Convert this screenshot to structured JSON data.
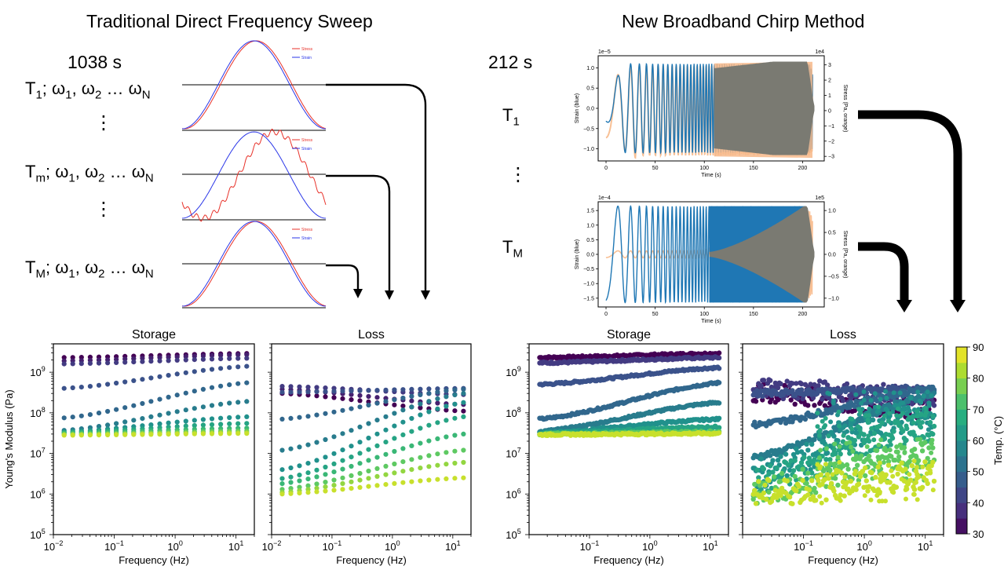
{
  "left": {
    "title": "Traditional Direct Frequency Sweep",
    "duration": "1038 s",
    "temperature_rows": [
      {
        "T": "T",
        "t_sub": "1",
        "w1": "1",
        "w2": "2",
        "wN": "N"
      },
      {
        "T": "T",
        "t_sub": "m",
        "w1": "1",
        "w2": "2",
        "wN": "N"
      },
      {
        "T": "T",
        "t_sub": "M",
        "w1": "1",
        "w2": "2",
        "wN": "N"
      }
    ],
    "omega": "ω",
    "ellipsis": "…",
    "vdots": "⋮",
    "waveform_legend": {
      "stress": "Stress",
      "strain": "Strain"
    }
  },
  "right": {
    "title": "New Broadband Chirp Method",
    "duration": "212 s",
    "labels": [
      {
        "T": "T",
        "t_sub": "1"
      },
      {
        "T": "T",
        "t_sub": "M"
      }
    ],
    "vdots": "⋮"
  },
  "colors": {
    "stress_line": "#e8322a",
    "strain_line": "#2a36e8",
    "chirp_strain": "#1f77b4",
    "chirp_stress": "#f7b98a",
    "overlap": "#7a7a72",
    "arrow": "#000000",
    "viridis": [
      "#440154",
      "#472f7d",
      "#3b528b",
      "#2c728e",
      "#21918c",
      "#28ae80",
      "#5ec962",
      "#addc30",
      "#fde725"
    ]
  },
  "chart_data": [
    {
      "type": "line",
      "panel": "chirp-T1",
      "xlabel": "Time (s)",
      "ylabel_left": "Strain (blue)",
      "ylabel_right": "Stress (Pa, orange)",
      "x_ticks": [
        "0",
        "50",
        "100",
        "150",
        "200"
      ],
      "y_ticks_left": [
        "1.0",
        "0.5",
        "0.0",
        "−0.5",
        "−1.0"
      ],
      "y_ticks_right": [
        "3",
        "2",
        "1",
        "0",
        "−1",
        "−2",
        "−3"
      ],
      "y_exponent_left": "1e−5",
      "y_exponent_right": "1e4",
      "xlim": [
        -8,
        222
      ],
      "ylim_left": [
        -1.3,
        1.3
      ],
      "ylim_right": [
        -3.3,
        3.6
      ],
      "series": [
        {
          "name": "Strain (blue)",
          "color": "#1f77b4",
          "amplitude": 1.1
        },
        {
          "name": "Stress (Pa, orange)",
          "color": "#f7b98a",
          "amplitude": 3.1
        }
      ]
    },
    {
      "type": "line",
      "panel": "chirp-TM",
      "xlabel": "Time (s)",
      "ylabel_left": "Strain (blue)",
      "ylabel_right": "Stress (Pa, orange)",
      "x_ticks": [
        "0",
        "50",
        "100",
        "150",
        "200"
      ],
      "y_ticks_left": [
        "1.5",
        "1.0",
        "0.5",
        "0.0",
        "−0.5",
        "−1.0",
        "−1.5"
      ],
      "y_ticks_right": [
        "1.0",
        "0.5",
        "0.0",
        "−0.5",
        "−1.0"
      ],
      "y_exponent_left": "1e−4",
      "y_exponent_right": "1e5",
      "xlim": [
        -8,
        222
      ],
      "ylim_left": [
        -1.8,
        1.8
      ],
      "ylim_right": [
        -1.2,
        1.2
      ],
      "series": [
        {
          "name": "Strain (blue)",
          "color": "#1f77b4",
          "amplitude": 1.65
        },
        {
          "name": "Stress (Pa, orange)",
          "color": "#f7b98a",
          "amplitude": 1.05
        }
      ]
    },
    {
      "type": "scatter",
      "panel": "traditional-storage",
      "title": "Storage",
      "xlabel": "Frequency (Hz)",
      "ylabel": "Young's Modulus (Pa)",
      "x_scale": "log",
      "y_scale": "log",
      "xlim": [
        0.01,
        20
      ],
      "ylim": [
        100000,
        5000000000
      ],
      "x_ticks": [
        {
          "mant": "10",
          "exp": "−2"
        },
        {
          "mant": "10",
          "exp": "−1"
        },
        {
          "mant": "10",
          "exp": "0"
        },
        {
          "mant": "10",
          "exp": "1"
        }
      ],
      "y_ticks": [
        {
          "mant": "10",
          "exp": "5"
        },
        {
          "mant": "10",
          "exp": "6"
        },
        {
          "mant": "10",
          "exp": "7"
        },
        {
          "mant": "10",
          "exp": "8"
        },
        {
          "mant": "10",
          "exp": "9"
        }
      ],
      "freq_range": [
        0.015,
        15
      ],
      "series": [
        {
          "temp": 30,
          "start": 2300000000,
          "end": 2900000000
        },
        {
          "temp": 35,
          "start": 1900000000,
          "end": 2700000000
        },
        {
          "temp": 40,
          "start": 1600000000,
          "end": 2200000000
        },
        {
          "temp": 45,
          "start": 400000000,
          "end": 1400000000
        },
        {
          "temp": 50,
          "start": 75000000,
          "end": 550000000
        },
        {
          "temp": 55,
          "start": 37000000,
          "end": 190000000
        },
        {
          "temp": 60,
          "start": 34000000,
          "end": 80000000
        },
        {
          "temp": 65,
          "start": 33000000,
          "end": 55000000
        },
        {
          "temp": 70,
          "start": 32000000,
          "end": 42000000
        },
        {
          "temp": 75,
          "start": 30000000,
          "end": 36000000
        },
        {
          "temp": 80,
          "start": 29000000,
          "end": 33000000
        },
        {
          "temp": 85,
          "start": 28000000,
          "end": 31000000
        }
      ]
    },
    {
      "type": "scatter",
      "panel": "traditional-loss",
      "title": "Loss",
      "xlabel": "Frequency (Hz)",
      "x_scale": "log",
      "y_scale": "log",
      "xlim": [
        0.01,
        20
      ],
      "ylim": [
        100000,
        5000000000
      ],
      "x_ticks": [
        {
          "mant": "10",
          "exp": "−2"
        },
        {
          "mant": "10",
          "exp": "−1"
        },
        {
          "mant": "10",
          "exp": "0"
        },
        {
          "mant": "10",
          "exp": "1"
        }
      ],
      "freq_range": [
        0.015,
        15
      ],
      "series": [
        {
          "temp": 30,
          "start": 300000000,
          "end": 110000000
        },
        {
          "temp": 35,
          "start": 380000000,
          "end": 160000000
        },
        {
          "temp": 40,
          "start": 450000000,
          "end": 280000000
        },
        {
          "temp": 45,
          "start": 320000000,
          "end": 400000000
        },
        {
          "temp": 50,
          "start": 70000000,
          "end": 380000000
        },
        {
          "temp": 55,
          "start": 12000000,
          "end": 300000000
        },
        {
          "temp": 60,
          "start": 4000000,
          "end": 180000000
        },
        {
          "temp": 65,
          "start": 2400000,
          "end": 80000000
        },
        {
          "temp": 70,
          "start": 1800000,
          "end": 30000000
        },
        {
          "temp": 75,
          "start": 1300000,
          "end": 12000000
        },
        {
          "temp": 80,
          "start": 1100000,
          "end": 6000000
        },
        {
          "temp": 85,
          "start": 1000000,
          "end": 2500000
        }
      ]
    },
    {
      "type": "scatter",
      "panel": "chirp-storage",
      "title": "Storage",
      "xlabel": "Frequency (Hz)",
      "x_scale": "log",
      "y_scale": "log",
      "xlim": [
        0.01,
        20
      ],
      "ylim": [
        100000,
        5000000000
      ],
      "x_ticks": [
        {
          "mant": "10",
          "exp": "−1"
        },
        {
          "mant": "10",
          "exp": "0"
        },
        {
          "mant": "10",
          "exp": "1"
        }
      ],
      "y_ticks": [
        {
          "mant": "10",
          "exp": "5"
        },
        {
          "mant": "10",
          "exp": "6"
        },
        {
          "mant": "10",
          "exp": "7"
        },
        {
          "mant": "10",
          "exp": "8"
        },
        {
          "mant": "10",
          "exp": "9"
        }
      ],
      "freq_range": [
        0.015,
        14
      ],
      "series": [
        {
          "temp": 30,
          "start": 2300000000,
          "end": 2900000000
        },
        {
          "temp": 40,
          "start": 1700000000,
          "end": 2300000000
        },
        {
          "temp": 45,
          "start": 500000000,
          "end": 1300000000
        },
        {
          "temp": 50,
          "start": 70000000,
          "end": 550000000
        },
        {
          "temp": 55,
          "start": 35000000,
          "end": 180000000
        },
        {
          "temp": 60,
          "start": 32000000,
          "end": 70000000
        },
        {
          "temp": 65,
          "start": 31000000,
          "end": 45000000
        },
        {
          "temp": 75,
          "start": 30000000,
          "end": 34000000
        },
        {
          "temp": 85,
          "start": 29000000,
          "end": 31000000
        }
      ]
    },
    {
      "type": "scatter",
      "panel": "chirp-loss",
      "title": "Loss",
      "xlabel": "Frequency (Hz)",
      "x_scale": "log",
      "y_scale": "log",
      "xlim": [
        0.01,
        20
      ],
      "ylim": [
        100000,
        5000000000
      ],
      "x_ticks": [
        {
          "mant": "10",
          "exp": "−1"
        },
        {
          "mant": "10",
          "exp": "0"
        },
        {
          "mant": "10",
          "exp": "1"
        }
      ],
      "freq_range": [
        0.015,
        14
      ],
      "series": [
        {
          "temp": 30,
          "start": 300000000,
          "end": 120000000
        },
        {
          "temp": 40,
          "start": 420000000,
          "end": 250000000
        },
        {
          "temp": 45,
          "start": 300000000,
          "end": 400000000
        },
        {
          "temp": 50,
          "start": 50000000,
          "end": 400000000
        },
        {
          "temp": 55,
          "start": 8000000,
          "end": 280000000
        },
        {
          "temp": 60,
          "start": 3000000,
          "end": 150000000
        },
        {
          "temp": 65,
          "start": 2000000,
          "end": 60000000
        },
        {
          "temp": 75,
          "start": 1200000,
          "end": 10000000
        },
        {
          "temp": 85,
          "start": 1000000,
          "end": 3000000
        }
      ]
    },
    {
      "type": "heatmap",
      "panel": "colorbar",
      "label": "Temp. (°C)",
      "range": [
        30,
        90
      ],
      "ticks": [
        "90",
        "80",
        "70",
        "60",
        "50",
        "40",
        "30"
      ]
    }
  ]
}
